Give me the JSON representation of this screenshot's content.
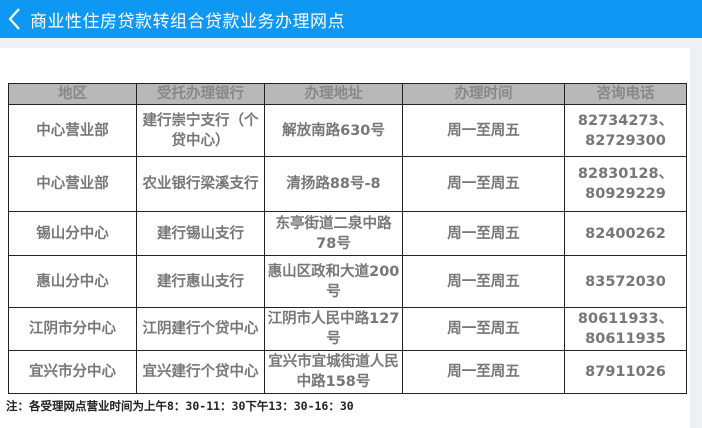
{
  "header": {
    "title": "商业性住房贷款转组合贷款业务办理网点",
    "back_icon": "chevron-left-icon",
    "color": "#0e98f3"
  },
  "table": {
    "columns": [
      "地区",
      "受托办理银行",
      "办理地址",
      "办理时间",
      "咨询电话"
    ],
    "rows": [
      [
        "中心营业部",
        "建行崇宁支行（个贷中心）",
        "解放南路630号",
        "周一至周五",
        "82734273、82729300"
      ],
      [
        "中心营业部",
        "农业银行梁溪支行",
        "清扬路88号-8",
        "周一至周五",
        "82830128、80929229"
      ],
      [
        "锡山分中心",
        "建行锡山支行",
        "东亭街道二泉中路78号",
        "周一至周五",
        "82400262"
      ],
      [
        "惠山分中心",
        "建行惠山支行",
        "惠山区政和大道200号",
        "周一至周五",
        "83572030"
      ],
      [
        "江阴市分中心",
        "江阴建行个贷中心",
        "江阴市人民中路127号",
        "周一至周五",
        "80611933、80611935"
      ],
      [
        "宜兴市分中心",
        "宜兴建行个贷中心",
        "宜兴市宜城街道人民中路158号",
        "周一至周五",
        "87911026"
      ]
    ]
  },
  "note": "注：各受理网点营业时间为上午8：30-11：30下午13：30-16：30"
}
